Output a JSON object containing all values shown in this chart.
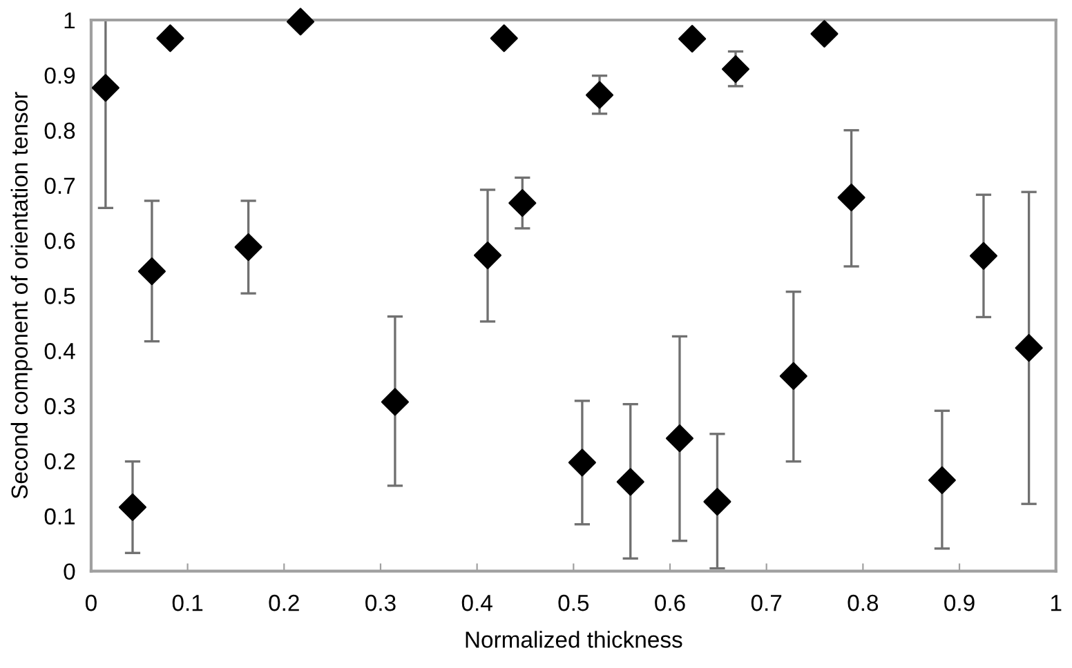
{
  "chart_data": {
    "type": "scatter",
    "xlabel": "Normalized thickness",
    "ylabel": "Second component of orientation tensor",
    "x": [
      0.015,
      0.043,
      0.063,
      0.082,
      0.163,
      0.217,
      0.315,
      0.411,
      0.428,
      0.447,
      0.509,
      0.527,
      0.559,
      0.61,
      0.623,
      0.649,
      0.668,
      0.728,
      0.76,
      0.788,
      0.882,
      0.925,
      0.972
    ],
    "values": [
      0.877,
      0.116,
      0.544,
      0.967,
      0.588,
      0.997,
      0.307,
      0.573,
      0.967,
      0.668,
      0.197,
      0.864,
      0.162,
      0.241,
      0.966,
      0.126,
      0.911,
      0.354,
      0.975,
      0.678,
      0.165,
      0.572,
      0.405
    ],
    "errors": [
      [
        0.659,
        1.0
      ],
      [
        0.033,
        0.199
      ],
      [
        0.417,
        0.672
      ],
      null,
      [
        0.504,
        0.672
      ],
      null,
      [
        0.155,
        0.462
      ],
      [
        0.453,
        0.692
      ],
      null,
      [
        0.622,
        0.714
      ],
      [
        0.085,
        0.309
      ],
      [
        0.83,
        0.899
      ],
      [
        0.023,
        0.303
      ],
      [
        0.055,
        0.426
      ],
      null,
      [
        0.005,
        0.249
      ],
      [
        0.88,
        0.943
      ],
      [
        0.199,
        0.507
      ],
      null,
      [
        0.553,
        0.8
      ],
      [
        0.041,
        0.291
      ],
      [
        0.461,
        0.683
      ],
      [
        0.122,
        0.688
      ]
    ],
    "color": "#000000",
    "marker": "diamond",
    "grid": false,
    "legend": false,
    "xlim": [
      0,
      1
    ],
    "xticks": [
      0,
      0.1,
      0.2,
      0.3,
      0.4,
      0.5,
      0.6,
      0.7,
      0.8,
      0.9,
      1
    ],
    "ylim": [
      0,
      1
    ],
    "yticks": [
      0,
      0.1,
      0.2,
      0.3,
      0.4,
      0.5,
      0.6,
      0.7,
      0.8,
      0.9,
      1
    ]
  }
}
